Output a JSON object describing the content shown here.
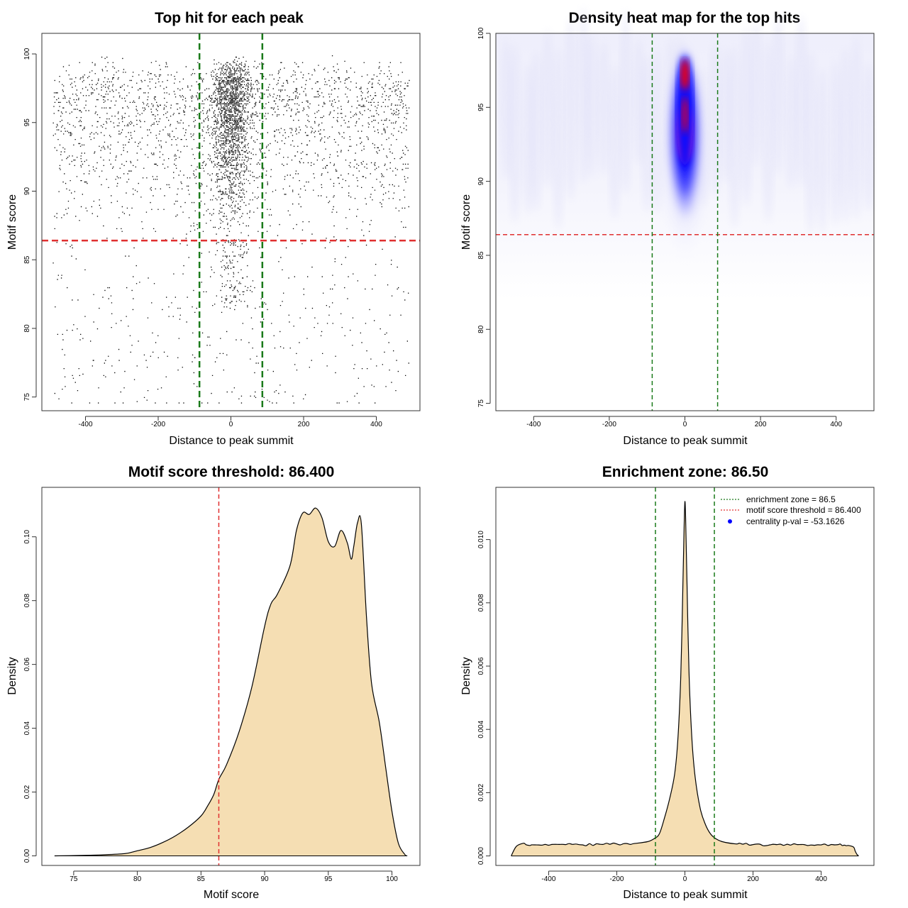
{
  "colors": {
    "threshold_red": "#e03030",
    "zone_green": "#1a7a1a",
    "density_fill": "#f5deb3",
    "heat_blue": "#0000ff",
    "heat_red": "#ff0000",
    "point": "#000000",
    "legend_dot": "#0000ff"
  },
  "chart_data": [
    {
      "id": "scatter",
      "type": "scatter",
      "title": "Top hit for each peak",
      "xlabel": "Distance to peak summit",
      "ylabel": "Motif score",
      "xlim": [
        -520,
        520
      ],
      "ylim": [
        74,
        101.5
      ],
      "x_ticks": [
        -400,
        -200,
        0,
        200,
        400
      ],
      "x_tick_labels": [
        "-400",
        "-200",
        "0",
        "200",
        "400"
      ],
      "y_ticks": [
        75,
        80,
        85,
        90,
        95,
        100
      ],
      "y_tick_labels": [
        "75",
        "80",
        "85",
        "90",
        "95",
        "100"
      ],
      "threshold_y": 86.4,
      "zone_x": [
        -86.5,
        86.5
      ],
      "points": {
        "estimated_count": 12000,
        "x_range": [
          -500,
          500
        ],
        "y_range": [
          74.5,
          100
        ],
        "central_band_x": [
          -50,
          50
        ],
        "note": "dense cloud of top-hit points concentrated near 0 bp and motif scores 87-100"
      }
    },
    {
      "id": "heatmap",
      "type": "heatmap",
      "title": "Density heat map for the top hits",
      "xlabel": "Distance to peak summit",
      "ylabel": "Motif score",
      "xlim": [
        -500,
        500
      ],
      "ylim": [
        74.5,
        100
      ],
      "x_ticks": [
        -400,
        -200,
        0,
        200,
        400
      ],
      "x_tick_labels": [
        "-400",
        "-200",
        "0",
        "200",
        "400"
      ],
      "y_ticks": [
        75,
        80,
        85,
        90,
        95,
        100
      ],
      "y_tick_labels": [
        "75",
        "80",
        "85",
        "90",
        "95",
        "100"
      ],
      "threshold_y": 86.4,
      "zone_x": [
        -86.5,
        86.5
      ],
      "peak": {
        "x": 0,
        "y_range": [
          91,
          98.5
        ],
        "hotspot_y": 97.2
      }
    },
    {
      "id": "score-density",
      "type": "area",
      "title": "Motif score threshold: 86.400",
      "xlabel": "Motif score",
      "ylabel": "Density",
      "xlim": [
        72.5,
        102.2
      ],
      "ylim": [
        -0.003,
        0.1155
      ],
      "x_ticks": [
        75,
        80,
        85,
        90,
        95,
        100
      ],
      "x_tick_labels": [
        "75",
        "80",
        "85",
        "90",
        "95",
        "100"
      ],
      "y_ticks": [
        0.0,
        0.02,
        0.04,
        0.06,
        0.08,
        0.1
      ],
      "y_tick_labels": [
        "0.00",
        "0.02",
        "0.04",
        "0.06",
        "0.08",
        "0.10"
      ],
      "threshold_x": 86.4,
      "x": [
        73.5,
        75,
        77,
        79,
        80,
        81,
        82,
        83,
        84,
        85,
        85.5,
        86,
        86.4,
        87,
        88,
        89,
        90,
        90.5,
        91,
        92,
        92.5,
        93,
        93.5,
        94,
        94.5,
        95,
        95.5,
        96,
        96.5,
        96.8,
        97,
        97.3,
        97.6,
        98,
        98.4,
        99,
        99.5,
        100,
        100.5,
        101,
        101.2
      ],
      "y": [
        0.0,
        0.0001,
        0.0003,
        0.0007,
        0.0016,
        0.0026,
        0.0042,
        0.0063,
        0.009,
        0.0125,
        0.0155,
        0.0192,
        0.024,
        0.0285,
        0.039,
        0.053,
        0.072,
        0.079,
        0.082,
        0.091,
        0.102,
        0.1075,
        0.107,
        0.109,
        0.106,
        0.0985,
        0.097,
        0.102,
        0.098,
        0.093,
        0.097,
        0.1045,
        0.104,
        0.075,
        0.054,
        0.042,
        0.028,
        0.014,
        0.004,
        0.0005,
        0.0
      ]
    },
    {
      "id": "distance-density",
      "type": "area",
      "title": "Enrichment zone: 86.50",
      "xlabel": "Distance to peak summit",
      "ylabel": "Density",
      "xlim": [
        -555,
        555
      ],
      "ylim": [
        -0.0003,
        0.01165
      ],
      "x_ticks": [
        -400,
        -200,
        0,
        200,
        400
      ],
      "x_tick_labels": [
        "-400",
        "-200",
        "0",
        "200",
        "400"
      ],
      "y_ticks": [
        0.0,
        0.002,
        0.004,
        0.006,
        0.008,
        0.01
      ],
      "y_tick_labels": [
        "0.000",
        "0.002",
        "0.004",
        "0.006",
        "0.008",
        "0.010"
      ],
      "zone_x": [
        -86.5,
        86.5
      ],
      "x": [
        -510,
        -495,
        -475,
        -450,
        -400,
        -350,
        -300,
        -250,
        -200,
        -150,
        -110,
        -90,
        -75,
        -60,
        -45,
        -30,
        -20,
        -12,
        -6,
        -2,
        0,
        2,
        6,
        12,
        20,
        30,
        45,
        60,
        75,
        90,
        110,
        150,
        200,
        250,
        300,
        350,
        400,
        450,
        480,
        495,
        500,
        505,
        510
      ],
      "y": [
        0.0,
        0.0003,
        0.0004,
        0.00035,
        0.00034,
        0.00036,
        0.00035,
        0.00037,
        0.00038,
        0.00039,
        0.00045,
        0.00055,
        0.0007,
        0.0012,
        0.0018,
        0.0026,
        0.0038,
        0.0057,
        0.0085,
        0.0105,
        0.0112,
        0.0107,
        0.0087,
        0.0058,
        0.0038,
        0.0025,
        0.0015,
        0.001,
        0.0007,
        0.00055,
        0.00045,
        0.00038,
        0.00036,
        0.00035,
        0.00037,
        0.00036,
        0.00035,
        0.00036,
        0.00033,
        0.00028,
        0.00015,
        5e-05,
        0.0
      ]
    }
  ],
  "legend": [
    {
      "label": "enrichment zone = 86.5",
      "style": "dotted",
      "color": "#1a7a1a"
    },
    {
      "label": "motif score threshold = 86.400",
      "style": "dotted",
      "color": "#e03030"
    },
    {
      "label": "centrality p-val = -53.1626",
      "style": "dot",
      "color": "#0000ff"
    }
  ]
}
